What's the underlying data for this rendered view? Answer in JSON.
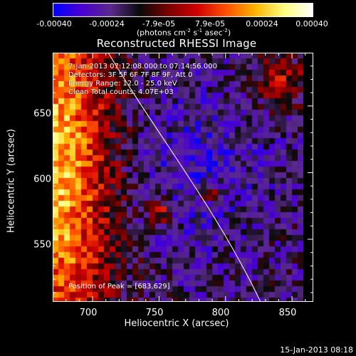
{
  "colorbar": {
    "ticks": [
      "-0.00040",
      "-0.00024",
      "-7.9e-05",
      "7.9e-05",
      "0.00024",
      "0.00040"
    ],
    "tick_values": [
      -0.0004,
      -0.00024,
      -7.9e-05,
      7.9e-05,
      0.00024,
      0.0004
    ],
    "units_prefix": "(photons cm",
    "units_sup1": "-2",
    "units_mid1": " s",
    "units_sup2": "-1",
    "units_mid2": " asec",
    "units_sup3": "-2",
    "units_suffix": ")",
    "colors": [
      "#0000ff",
      "#4b00d0",
      "#5a2a8c",
      "#0a0a0a",
      "#7a0000",
      "#d20000",
      "#ff5000",
      "#ffb400",
      "#ffff80",
      "#ffffff"
    ]
  },
  "plot": {
    "title": "Reconstructed RHESSI Image",
    "xlabel": "Heliocentric X (arcsec)",
    "ylabel": "Heliocentric Y (arcsec)",
    "x_ticks": [
      "700",
      "750",
      "800",
      "850"
    ],
    "x_tick_values": [
      700,
      750,
      800,
      850
    ],
    "y_ticks": [
      "550",
      "600",
      "650"
    ],
    "y_tick_values": [
      550,
      600,
      650
    ],
    "xlim": [
      670,
      866
    ],
    "ylim": [
      503,
      690
    ],
    "limb_color": "#ffffff"
  },
  "info": {
    "time_range": "7-Jan-2013 07:12:08.000 to 07:14:56.000",
    "detectors": "Detectors: 3F 5F 6F 7F 8F 9F, Att 0",
    "energy": "Energy Range: 12.0 - 25.0 keV",
    "clean": "Clean     Total counts: 4.07E+03",
    "peak": "Position of Peak = [683,629]"
  },
  "footer": {
    "date": "15-Jan-2013 08:18"
  }
}
